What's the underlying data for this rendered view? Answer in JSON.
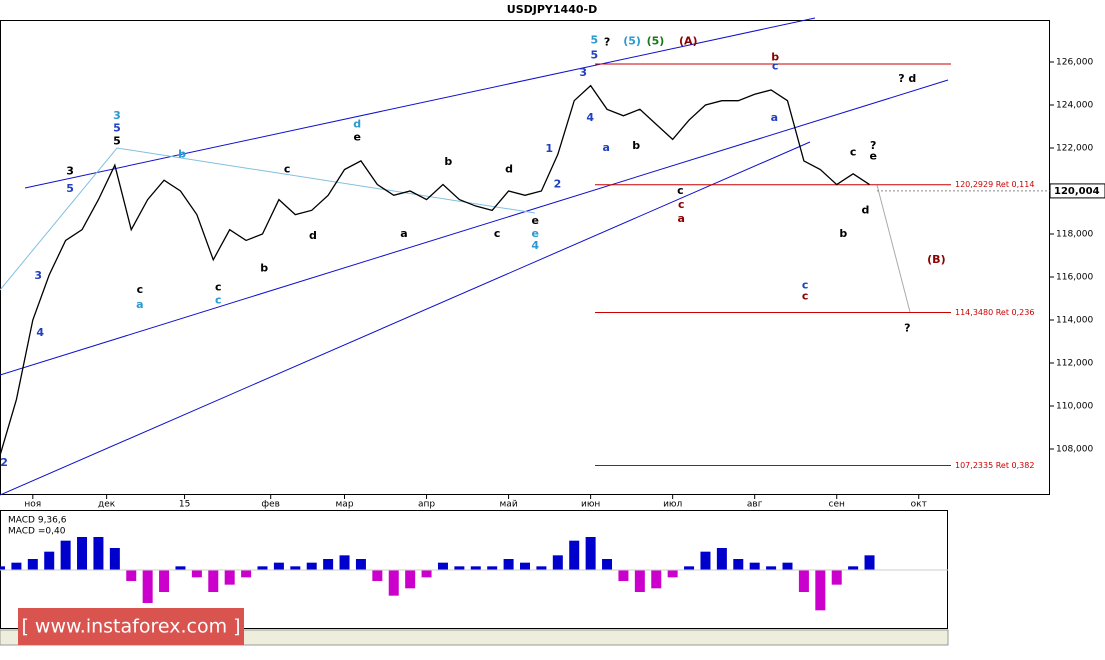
{
  "chart_data": {
    "type": "line",
    "title": "USDJPY1440-D",
    "xlim": [
      0,
      256
    ],
    "ylim": [
      105.86,
      128.884
    ],
    "yticks": [
      {
        "value": 108,
        "label": "108,000"
      },
      {
        "value": 110,
        "label": "110,000"
      },
      {
        "value": 112,
        "label": "112,000"
      },
      {
        "value": 114,
        "label": "114,000"
      },
      {
        "value": 116,
        "label": "116,000"
      },
      {
        "value": 118,
        "label": "118,000"
      },
      {
        "value": 120,
        "label": "120,000"
      },
      {
        "value": 122,
        "label": "122,000"
      },
      {
        "value": 124,
        "label": "124,000"
      },
      {
        "value": 126,
        "label": "126,000"
      }
    ],
    "xticks": [
      {
        "value": 8,
        "label": "ноя"
      },
      {
        "value": 26,
        "label": "дек"
      },
      {
        "value": 45,
        "label": "15"
      },
      {
        "value": 66,
        "label": "фев"
      },
      {
        "value": 84,
        "label": "мар"
      },
      {
        "value": 104,
        "label": "апр"
      },
      {
        "value": 124,
        "label": "май"
      },
      {
        "value": 144,
        "label": "июн"
      },
      {
        "value": 164,
        "label": "июл"
      },
      {
        "value": 184,
        "label": "авг"
      },
      {
        "value": 204,
        "label": "сен"
      },
      {
        "value": 224,
        "label": "окт"
      }
    ],
    "x": [
      0,
      4,
      8,
      12,
      16,
      20,
      24,
      28,
      32,
      36,
      40,
      44,
      48,
      52,
      56,
      60,
      64,
      68,
      72,
      76,
      80,
      84,
      88,
      92,
      96,
      100,
      104,
      108,
      112,
      116,
      120,
      124,
      128,
      132,
      136,
      140,
      144,
      148,
      152,
      156,
      160,
      164,
      168,
      172,
      176,
      180,
      184,
      188,
      192,
      196,
      200,
      204,
      208,
      212
    ],
    "series": [
      {
        "name": "USDJPY",
        "color": "#000000",
        "values": [
          107.7,
          110.3,
          114.0,
          116.1,
          117.7,
          118.2,
          119.6,
          121.2,
          118.2,
          119.6,
          120.5,
          120.0,
          118.9,
          116.8,
          118.2,
          117.7,
          118.0,
          119.6,
          118.9,
          119.1,
          119.8,
          121.0,
          121.4,
          120.3,
          119.8,
          120.0,
          119.6,
          120.3,
          119.6,
          119.3,
          119.1,
          120.0,
          119.8,
          120.0,
          121.7,
          124.2,
          124.9,
          123.8,
          123.5,
          123.8,
          123.1,
          122.4,
          123.3,
          124.0,
          124.2,
          124.2,
          124.5,
          124.7,
          124.2,
          121.4,
          121.0,
          120.3,
          120.8,
          120.3
        ]
      }
    ],
    "current_price": {
      "value": 120.004,
      "label": "120,004"
    },
    "levels": [
      {
        "value": 120.2929,
        "label": "120,2929 Ret 0,114"
      },
      {
        "value": 114.348,
        "label": "114,3480 Ret 0,236"
      },
      {
        "value": 107.2335,
        "label": "107,2335 Ret 0,382"
      }
    ],
    "level_color": "#cc0000",
    "annotations": [
      {
        "x": 1.0,
        "y": 107.35,
        "text": "2",
        "color": "#2040c0"
      },
      {
        "x": 9.8,
        "y": 113.4,
        "text": "4",
        "color": "#2040c0"
      },
      {
        "x": 9.3,
        "y": 116.05,
        "text": "3",
        "color": "#2040c0"
      },
      {
        "x": 17.1,
        "y": 120.9,
        "text": "3",
        "color": "#000000"
      },
      {
        "x": 17.1,
        "y": 120.1,
        "text": "5",
        "color": "#2040c0"
      },
      {
        "x": 28.5,
        "y": 123.5,
        "text": "3",
        "color": "#2a9ad0"
      },
      {
        "x": 28.5,
        "y": 122.9,
        "text": "5",
        "color": "#2040c0"
      },
      {
        "x": 28.5,
        "y": 122.3,
        "text": "5",
        "color": "#000000"
      },
      {
        "x": 34.1,
        "y": 115.4,
        "text": "c",
        "color": "#000000"
      },
      {
        "x": 34.1,
        "y": 114.7,
        "text": "a",
        "color": "#2a9ad0"
      },
      {
        "x": 44.4,
        "y": 121.7,
        "text": "b",
        "color": "#2a9ad0"
      },
      {
        "x": 53.2,
        "y": 115.5,
        "text": "c",
        "color": "#000000"
      },
      {
        "x": 53.2,
        "y": 114.9,
        "text": "c",
        "color": "#2a9ad0"
      },
      {
        "x": 64.4,
        "y": 116.4,
        "text": "b",
        "color": "#000000"
      },
      {
        "x": 70.0,
        "y": 121.0,
        "text": "c",
        "color": "#000000"
      },
      {
        "x": 76.3,
        "y": 117.9,
        "text": "d",
        "color": "#000000"
      },
      {
        "x": 87.1,
        "y": 123.1,
        "text": "d",
        "color": "#2a9ad0"
      },
      {
        "x": 87.1,
        "y": 122.5,
        "text": "e",
        "color": "#000000"
      },
      {
        "x": 98.5,
        "y": 118.0,
        "text": "a",
        "color": "#000000"
      },
      {
        "x": 109.3,
        "y": 121.35,
        "text": "b",
        "color": "#000000"
      },
      {
        "x": 121.2,
        "y": 118.0,
        "text": "c",
        "color": "#000000"
      },
      {
        "x": 124.1,
        "y": 121.0,
        "text": "d",
        "color": "#000000"
      },
      {
        "x": 130.5,
        "y": 118.6,
        "text": "e",
        "color": "#000000"
      },
      {
        "x": 130.5,
        "y": 118.0,
        "text": "e",
        "color": "#2a9ad0"
      },
      {
        "x": 130.5,
        "y": 117.45,
        "text": "4",
        "color": "#2a9ad0"
      },
      {
        "x": 133.9,
        "y": 121.95,
        "text": "1",
        "color": "#2040c0"
      },
      {
        "x": 135.9,
        "y": 120.3,
        "text": "2",
        "color": "#2040c0"
      },
      {
        "x": 142.2,
        "y": 125.5,
        "text": "3",
        "color": "#2040c0"
      },
      {
        "x": 144.9,
        "y": 127.0,
        "text": "5",
        "color": "#2a9ad0"
      },
      {
        "x": 144.9,
        "y": 126.3,
        "text": "5",
        "color": "#2040c0"
      },
      {
        "x": 148.0,
        "y": 126.9,
        "text": "?",
        "color": "#000000"
      },
      {
        "x": 154.1,
        "y": 126.95,
        "text": "(5)",
        "color": "#2a9ad0"
      },
      {
        "x": 159.8,
        "y": 126.95,
        "text": "(5)",
        "color": "#1a7a1a"
      },
      {
        "x": 167.8,
        "y": 126.95,
        "text": "(A)",
        "color": "#8b0000"
      },
      {
        "x": 143.9,
        "y": 123.4,
        "text": "4",
        "color": "#2040c0"
      },
      {
        "x": 147.8,
        "y": 122.0,
        "text": "a",
        "color": "#2040c0"
      },
      {
        "x": 155.1,
        "y": 122.1,
        "text": "b",
        "color": "#000000"
      },
      {
        "x": 165.9,
        "y": 120.0,
        "text": "c",
        "color": "#000000"
      },
      {
        "x": 166.1,
        "y": 119.35,
        "text": "c",
        "color": "#8b0000"
      },
      {
        "x": 166.1,
        "y": 118.7,
        "text": "a",
        "color": "#8b0000"
      },
      {
        "x": 189.0,
        "y": 126.2,
        "text": "b",
        "color": "#8b0000"
      },
      {
        "x": 189.0,
        "y": 125.8,
        "text": "c",
        "color": "#2040c0"
      },
      {
        "x": 188.8,
        "y": 123.4,
        "text": "a",
        "color": "#2040c0"
      },
      {
        "x": 196.3,
        "y": 115.6,
        "text": "c",
        "color": "#2040c0"
      },
      {
        "x": 196.3,
        "y": 115.1,
        "text": "c",
        "color": "#8b0000"
      },
      {
        "x": 205.6,
        "y": 118.0,
        "text": "b",
        "color": "#000000"
      },
      {
        "x": 208.0,
        "y": 121.8,
        "text": "c",
        "color": "#000000"
      },
      {
        "x": 211.0,
        "y": 119.1,
        "text": "d",
        "color": "#000000"
      },
      {
        "x": 212.9,
        "y": 122.1,
        "text": "?",
        "color": "#000000"
      },
      {
        "x": 212.9,
        "y": 121.6,
        "text": "e",
        "color": "#000000"
      },
      {
        "x": 221.2,
        "y": 125.2,
        "text": "? d",
        "color": "#000000"
      },
      {
        "x": 228.3,
        "y": 116.8,
        "text": "(B)",
        "color": "#8b0000"
      },
      {
        "x": 221.2,
        "y": 113.6,
        "text": "?",
        "color": "#000000"
      }
    ],
    "macd": {
      "title": "MACD 9,36,6",
      "value_label": "MACD =0,40",
      "ylim": [
        -1.5,
        1.5
      ],
      "positive_color": "#0000cc",
      "negative_color": "#cc00cc",
      "values": [
        0.1,
        0.2,
        0.3,
        0.5,
        0.8,
        0.9,
        0.9,
        0.6,
        -0.3,
        -0.9,
        -0.6,
        0.1,
        -0.2,
        -0.6,
        -0.4,
        -0.2,
        0.1,
        0.2,
        0.1,
        0.2,
        0.3,
        0.4,
        0.3,
        -0.3,
        -0.7,
        -0.5,
        -0.2,
        0.2,
        0.1,
        0.1,
        0.1,
        0.3,
        0.2,
        0.1,
        0.4,
        0.8,
        0.9,
        0.3,
        -0.3,
        -0.6,
        -0.5,
        -0.2,
        0.1,
        0.5,
        0.6,
        0.3,
        0.2,
        0.1,
        0.2,
        -0.6,
        -1.1,
        -0.4,
        0.1,
        0.4
      ]
    },
    "watermark": "[ www.instaforex.com ]"
  }
}
